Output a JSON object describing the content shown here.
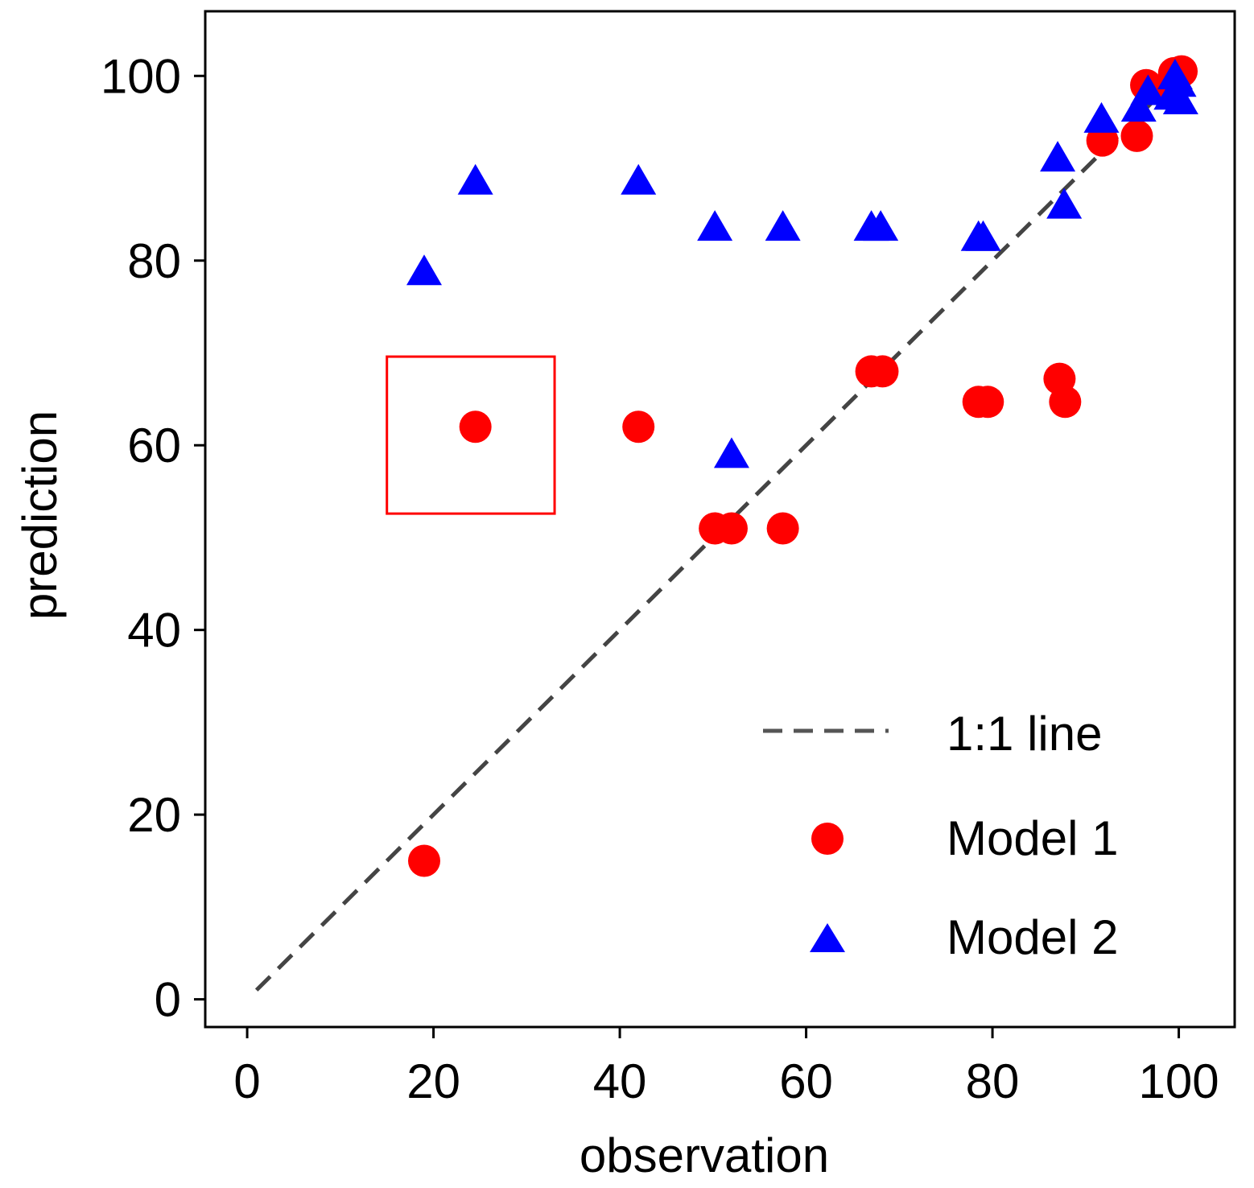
{
  "chart_data": {
    "type": "scatter",
    "title": "",
    "xlabel": "observation",
    "ylabel": "prediction",
    "xlim": [
      -4.5,
      106
    ],
    "ylim": [
      -3,
      107
    ],
    "xticks": [
      0,
      20,
      40,
      60,
      80,
      100
    ],
    "yticks": [
      0,
      20,
      40,
      60,
      80,
      100
    ],
    "grid": false,
    "legend_position": "bottom-right",
    "reference_line": {
      "name": "1:1 line",
      "x": [
        1,
        100
      ],
      "y": [
        1,
        100
      ],
      "style": "dashed",
      "color": "#444444"
    },
    "series": [
      {
        "name": "Model 1",
        "marker": "circle",
        "color": "#ff0000",
        "points": [
          {
            "x": 19,
            "y": 15
          },
          {
            "x": 24.5,
            "y": 62
          },
          {
            "x": 42,
            "y": 62
          },
          {
            "x": 50.2,
            "y": 51
          },
          {
            "x": 52,
            "y": 51
          },
          {
            "x": 57.5,
            "y": 51
          },
          {
            "x": 67,
            "y": 68
          },
          {
            "x": 68.2,
            "y": 68
          },
          {
            "x": 78.5,
            "y": 64.7
          },
          {
            "x": 79.5,
            "y": 64.7
          },
          {
            "x": 87.2,
            "y": 67.2
          },
          {
            "x": 87.8,
            "y": 64.7
          },
          {
            "x": 91.8,
            "y": 93
          },
          {
            "x": 95.5,
            "y": 93.5
          },
          {
            "x": 96.5,
            "y": 99
          },
          {
            "x": 98.5,
            "y": 98.5
          },
          {
            "x": 99.5,
            "y": 100.3
          },
          {
            "x": 100.3,
            "y": 100.5
          }
        ]
      },
      {
        "name": "Model 2",
        "marker": "triangle",
        "color": "#0000ff",
        "points": [
          {
            "x": 19,
            "y": 79
          },
          {
            "x": 24.5,
            "y": 88.8
          },
          {
            "x": 42,
            "y": 88.8
          },
          {
            "x": 50.2,
            "y": 83.8
          },
          {
            "x": 52,
            "y": 59.2
          },
          {
            "x": 57.5,
            "y": 83.8
          },
          {
            "x": 67,
            "y": 83.8
          },
          {
            "x": 68,
            "y": 83.8
          },
          {
            "x": 78.5,
            "y": 82.7
          },
          {
            "x": 79,
            "y": 82.7
          },
          {
            "x": 87,
            "y": 91.3
          },
          {
            "x": 87.7,
            "y": 86.2
          },
          {
            "x": 91.7,
            "y": 95.5
          },
          {
            "x": 95.7,
            "y": 96.7
          },
          {
            "x": 96.7,
            "y": 98.5
          },
          {
            "x": 99.2,
            "y": 98
          },
          {
            "x": 99.6,
            "y": 100.2
          },
          {
            "x": 100.2,
            "y": 97.5
          },
          {
            "x": 100,
            "y": 99.4
          }
        ]
      }
    ],
    "annotations": [
      {
        "type": "highlight-box",
        "color": "#ff0000",
        "x_range": [
          15,
          33
        ],
        "y_range": [
          52.6,
          69.6
        ]
      }
    ]
  }
}
